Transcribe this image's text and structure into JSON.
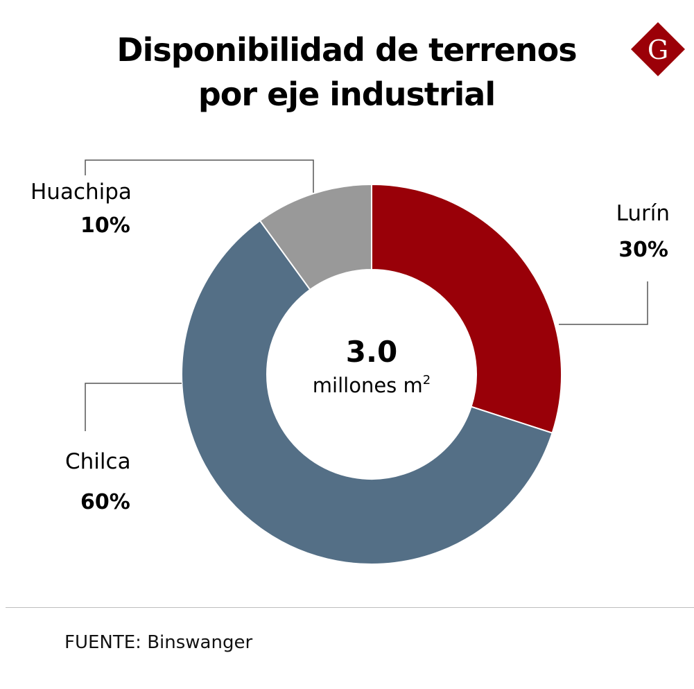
{
  "title": {
    "line1": "Disponibilidad de terrenos",
    "line2": "por eje industrial"
  },
  "logo": {
    "letter": "G",
    "icon": "brand-g-diamond-icon",
    "color": "#9b0008"
  },
  "chart_data": {
    "type": "pie",
    "donut": true,
    "categories": [
      "Lurín",
      "Chilca",
      "Huachipa"
    ],
    "values": [
      30,
      60,
      10
    ],
    "labels": [
      "30%",
      "60%",
      "10%"
    ],
    "colors": [
      "#990008",
      "#546f86",
      "#999999"
    ],
    "center": {
      "value": "3.0",
      "unit": "millones m",
      "unit_sup": "2"
    }
  },
  "source": "FUENTE: Binswanger"
}
